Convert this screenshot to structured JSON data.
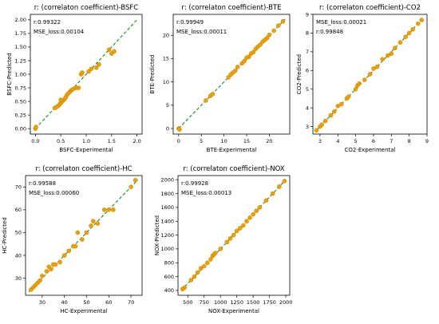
{
  "colors": {
    "point": "#e8a100",
    "point_edge": "#b87d00",
    "line": "#1a8a1a",
    "axis": "#000000"
  },
  "chart_data": [
    {
      "type": "scatter",
      "title": "r: (correlaton coefficient)-BSFC",
      "xlabel": "BSFC-Experimental",
      "ylabel": "BSFC-Predicted",
      "annotations": [
        "r:0.99322",
        "MSE_loss:0.00104"
      ],
      "xlim": [
        -0.1,
        2.1
      ],
      "ylim": [
        -0.1,
        2.1
      ],
      "xticks": [
        0.0,
        0.5,
        1.0,
        1.5,
        2.0
      ],
      "xtick_labels": [
        "0.0",
        "0.5",
        "1.0",
        "1.5",
        "2.0"
      ],
      "yticks": [
        0.0,
        0.25,
        0.5,
        0.75,
        1.0,
        1.25,
        1.5,
        1.75,
        2.0
      ],
      "ytick_labels": [
        "0.00",
        "0.25",
        "0.50",
        "0.75",
        "1.00",
        "1.25",
        "1.50",
        "1.75",
        "2.00"
      ],
      "fit_line": [
        [
          0,
          0
        ],
        [
          2.0,
          2.0
        ]
      ],
      "points": [
        [
          0.0,
          0.0
        ],
        [
          0.01,
          0.03
        ],
        [
          0.38,
          0.38
        ],
        [
          0.42,
          0.4
        ],
        [
          0.45,
          0.42
        ],
        [
          0.48,
          0.45
        ],
        [
          0.5,
          0.47
        ],
        [
          0.52,
          0.5
        ],
        [
          0.55,
          0.52
        ],
        [
          0.58,
          0.55
        ],
        [
          0.5,
          0.53
        ],
        [
          0.6,
          0.58
        ],
        [
          0.62,
          0.62
        ],
        [
          0.65,
          0.65
        ],
        [
          0.68,
          0.68
        ],
        [
          0.7,
          0.7
        ],
        [
          0.73,
          0.72
        ],
        [
          0.75,
          0.73
        ],
        [
          0.8,
          0.75
        ],
        [
          0.85,
          0.75
        ],
        [
          0.9,
          1.0
        ],
        [
          0.92,
          1.03
        ],
        [
          1.05,
          1.05
        ],
        [
          1.1,
          1.1
        ],
        [
          1.2,
          1.12
        ],
        [
          1.25,
          1.18
        ],
        [
          1.45,
          1.45
        ],
        [
          1.5,
          1.38
        ],
        [
          1.55,
          1.42
        ]
      ]
    },
    {
      "type": "scatter",
      "title": "r: (correlaton coefficient)-BTE",
      "xlabel": "BTE-Experimental",
      "ylabel": "BTE-Predicted",
      "annotations": [
        "r:0.99949",
        "MSE_loss:0.00011"
      ],
      "xlim": [
        -1.2,
        24.5
      ],
      "ylim": [
        -1.2,
        24.5
      ],
      "xticks": [
        0,
        5,
        10,
        15,
        20
      ],
      "xtick_labels": [
        "0",
        "5",
        "10",
        "15",
        "20"
      ],
      "yticks": [
        0,
        5,
        10,
        15,
        20
      ],
      "ytick_labels": [
        "0",
        "5",
        "10",
        "15",
        "20"
      ],
      "fit_line": [
        [
          0,
          0
        ],
        [
          23.5,
          23.5
        ]
      ],
      "points": [
        [
          0.0,
          0.0
        ],
        [
          0.2,
          -0.2
        ],
        [
          6.0,
          6.0
        ],
        [
          7.0,
          7.0
        ],
        [
          7.5,
          7.4
        ],
        [
          11.0,
          11.0
        ],
        [
          11.5,
          11.6
        ],
        [
          12.0,
          12.0
        ],
        [
          12.5,
          12.4
        ],
        [
          13.0,
          13.2
        ],
        [
          14.0,
          14.0
        ],
        [
          14.5,
          14.5
        ],
        [
          15.0,
          15.2
        ],
        [
          15.5,
          15.4
        ],
        [
          16.0,
          16.1
        ],
        [
          16.5,
          16.4
        ],
        [
          17.0,
          17.1
        ],
        [
          17.5,
          17.6
        ],
        [
          18.0,
          18.0
        ],
        [
          18.5,
          18.6
        ],
        [
          19.0,
          19.0
        ],
        [
          19.5,
          19.4
        ],
        [
          20.0,
          20.1
        ],
        [
          21.0,
          21.0
        ],
        [
          22.0,
          22.1
        ],
        [
          23.0,
          23.0
        ]
      ]
    },
    {
      "type": "scatter",
      "title": "r: (correlaton coefficient)-CO2",
      "xlabel": "CO2-Experimental",
      "ylabel": "CO2-Predicted",
      "annotations": [
        "MSE_loss:0.00021",
        "r:0.99848"
      ],
      "xlim": [
        2.6,
        9.0
      ],
      "ylim": [
        2.6,
        9.0
      ],
      "xticks": [
        3,
        4,
        5,
        6,
        7,
        8,
        9
      ],
      "xtick_labels": [
        "3",
        "4",
        "5",
        "6",
        "7",
        "8",
        "9"
      ],
      "yticks": [
        3,
        4,
        5,
        6,
        7,
        8,
        9
      ],
      "ytick_labels": [
        "3",
        "4",
        "5",
        "6",
        "7",
        "8",
        "9"
      ],
      "fit_line": [
        [
          2.8,
          2.8
        ],
        [
          8.8,
          8.8
        ]
      ],
      "points": [
        [
          2.8,
          2.8
        ],
        [
          3.0,
          3.0
        ],
        [
          3.1,
          3.1
        ],
        [
          3.3,
          3.3
        ],
        [
          3.6,
          3.6
        ],
        [
          3.8,
          3.8
        ],
        [
          4.0,
          4.1
        ],
        [
          4.2,
          4.2
        ],
        [
          4.5,
          4.5
        ],
        [
          4.6,
          4.6
        ],
        [
          5.0,
          5.0
        ],
        [
          5.1,
          5.2
        ],
        [
          5.2,
          5.3
        ],
        [
          5.5,
          5.5
        ],
        [
          5.8,
          5.8
        ],
        [
          6.0,
          6.1
        ],
        [
          6.2,
          6.2
        ],
        [
          6.5,
          6.6
        ],
        [
          6.8,
          6.8
        ],
        [
          7.0,
          6.9
        ],
        [
          7.2,
          7.2
        ],
        [
          7.5,
          7.5
        ],
        [
          7.8,
          7.8
        ],
        [
          8.0,
          8.0
        ],
        [
          8.2,
          8.2
        ],
        [
          8.5,
          8.5
        ],
        [
          8.7,
          8.7
        ]
      ]
    },
    {
      "type": "scatter",
      "title": "r: (correlaton coefficient)-HC",
      "xlabel": "HC-Experimental",
      "ylabel": "HC-Predicted",
      "annotations": [
        "r:0.99588",
        "MSE_loss:0.00060"
      ],
      "xlim": [
        22.5,
        75
      ],
      "ylim": [
        22.5,
        75
      ],
      "xticks": [
        30,
        40,
        50,
        60,
        70
      ],
      "xtick_labels": [
        "30",
        "40",
        "50",
        "60",
        "70"
      ],
      "yticks": [
        30,
        40,
        50,
        60,
        70
      ],
      "ytick_labels": [
        "30",
        "40",
        "50",
        "60",
        "70"
      ],
      "fit_line": [
        [
          24,
          24
        ],
        [
          73,
          73
        ]
      ],
      "points": [
        [
          25,
          25
        ],
        [
          26,
          26
        ],
        [
          27,
          27
        ],
        [
          28,
          28
        ],
        [
          29,
          29
        ],
        [
          30,
          31
        ],
        [
          32,
          33
        ],
        [
          33,
          35
        ],
        [
          34,
          34
        ],
        [
          35,
          36
        ],
        [
          36,
          36
        ],
        [
          38,
          37
        ],
        [
          40,
          40
        ],
        [
          42,
          42
        ],
        [
          44,
          44
        ],
        [
          45,
          44
        ],
        [
          46,
          50
        ],
        [
          48,
          47
        ],
        [
          50,
          50
        ],
        [
          52,
          53
        ],
        [
          53,
          55
        ],
        [
          55,
          54
        ],
        [
          58,
          60
        ],
        [
          60,
          60
        ],
        [
          62,
          60
        ],
        [
          70,
          70
        ],
        [
          72,
          73
        ]
      ]
    },
    {
      "type": "scatter",
      "title": "r: (correlaton coefficient)-NOX",
      "xlabel": "NOX-Experimental",
      "ylabel": "NOX-Predicted",
      "annotations": [
        "r:0.99928",
        "MSE_loss:0.00013"
      ],
      "xlim": [
        350,
        2060
      ],
      "ylim": [
        330,
        2060
      ],
      "xticks": [
        500,
        750,
        1000,
        1250,
        1500,
        1750,
        2000
      ],
      "xtick_labels": [
        "500",
        "750",
        "1000",
        "1250",
        "1500",
        "1750",
        "2000"
      ],
      "yticks": [
        400,
        600,
        800,
        1000,
        1200,
        1400,
        1600,
        1800,
        2000
      ],
      "ytick_labels": [
        "400",
        "600",
        "800",
        "1000",
        "1200",
        "1400",
        "1600",
        "1800",
        "2000"
      ],
      "fit_line": [
        [
          400,
          400
        ],
        [
          2000,
          2000
        ]
      ],
      "points": [
        [
          420,
          420
        ],
        [
          450,
          440
        ],
        [
          550,
          550
        ],
        [
          600,
          600
        ],
        [
          650,
          660
        ],
        [
          700,
          720
        ],
        [
          750,
          750
        ],
        [
          800,
          800
        ],
        [
          850,
          850
        ],
        [
          880,
          900
        ],
        [
          900,
          920
        ],
        [
          920,
          940
        ],
        [
          1000,
          1000
        ],
        [
          1100,
          1100
        ],
        [
          1150,
          1150
        ],
        [
          1200,
          1200
        ],
        [
          1250,
          1260
        ],
        [
          1300,
          1300
        ],
        [
          1350,
          1340
        ],
        [
          1400,
          1400
        ],
        [
          1450,
          1450
        ],
        [
          1500,
          1500
        ],
        [
          1550,
          1550
        ],
        [
          1600,
          1600
        ],
        [
          1700,
          1700
        ],
        [
          1800,
          1800
        ],
        [
          1900,
          1900
        ],
        [
          1980,
          1980
        ]
      ]
    }
  ]
}
